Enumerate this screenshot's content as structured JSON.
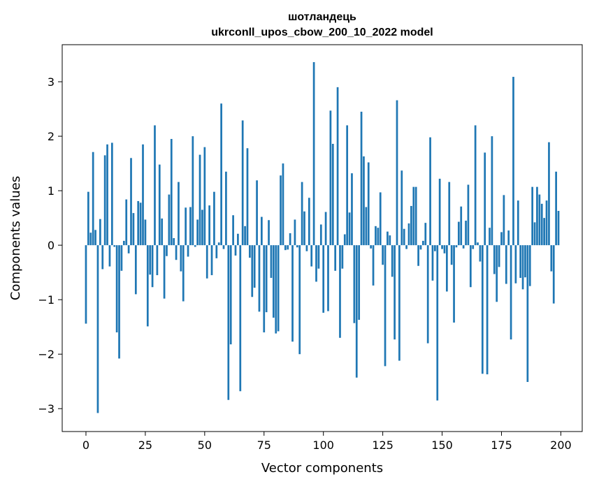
{
  "chart_data": {
    "type": "bar",
    "title_line1": "шотландець",
    "title_line2": "ukrconll_upos_cbow_200_10_2022 model",
    "xlabel": "Vector components",
    "ylabel": "Components values",
    "xlim": [
      -10,
      209
    ],
    "ylim": [
      -3.42,
      3.68
    ],
    "xticks": [
      0,
      25,
      50,
      75,
      100,
      125,
      150,
      175,
      200
    ],
    "yticks": [
      -3,
      -2,
      -1,
      0,
      1,
      2,
      3
    ],
    "ytick_labels": [
      "−3",
      "−2",
      "−1",
      "0",
      "1",
      "2",
      "3"
    ],
    "grid": false,
    "bar_color": "#1f77b4",
    "values": [
      -1.44,
      0.98,
      0.23,
      1.71,
      0.28,
      -3.08,
      0.48,
      -0.44,
      1.65,
      1.85,
      -0.39,
      1.88,
      -0.03,
      -1.6,
      -2.08,
      -0.47,
      0.08,
      0.84,
      -0.15,
      1.6,
      0.59,
      -0.9,
      0.81,
      0.78,
      1.85,
      0.47,
      -1.49,
      -0.54,
      -0.77,
      2.2,
      -0.55,
      1.48,
      0.49,
      -0.98,
      -0.2,
      0.93,
      1.95,
      0.13,
      -0.27,
      1.16,
      -0.48,
      -1.03,
      0.69,
      -0.21,
      0.7,
      2.0,
      -0.03,
      0.47,
      1.66,
      0.65,
      1.8,
      -0.61,
      0.73,
      -0.55,
      0.98,
      -0.24,
      0.05,
      2.6,
      -0.07,
      1.35,
      -2.84,
      -1.82,
      0.55,
      -0.19,
      0.21,
      -2.68,
      2.29,
      0.35,
      1.78,
      -0.23,
      -0.95,
      -0.78,
      1.19,
      -1.22,
      0.52,
      -1.6,
      -1.23,
      0.46,
      -0.6,
      -1.33,
      -1.62,
      -1.58,
      1.28,
      1.5,
      -0.09,
      -0.08,
      0.22,
      -1.77,
      0.47,
      -0.04,
      -2.0,
      1.16,
      0.62,
      -0.11,
      0.87,
      -0.39,
      3.36,
      -0.67,
      -0.43,
      0.38,
      -1.24,
      0.61,
      -1.21,
      2.47,
      1.86,
      -0.47,
      2.9,
      -1.7,
      -0.43,
      0.2,
      2.2,
      0.6,
      1.32,
      -1.43,
      -2.43,
      -1.37,
      2.45,
      1.63,
      0.7,
      1.52,
      -0.06,
      -0.74,
      0.35,
      0.32,
      0.97,
      -0.36,
      -2.22,
      0.25,
      0.18,
      -0.58,
      -1.73,
      2.66,
      -2.12,
      1.37,
      0.3,
      -0.07,
      0.4,
      0.72,
      1.07,
      1.07,
      -0.38,
      -0.08,
      0.08,
      0.41,
      -1.8,
      1.98,
      -0.65,
      -0.11,
      -2.85,
      1.22,
      -0.07,
      -0.15,
      -0.85,
      1.16,
      -0.36,
      -1.42,
      -0.04,
      0.43,
      0.71,
      -0.06,
      0.45,
      1.11,
      -0.77,
      -0.07,
      2.2,
      0.05,
      -0.3,
      -2.36,
      1.7,
      -2.37,
      0.32,
      2.0,
      -0.53,
      -1.04,
      -0.4,
      0.24,
      0.92,
      -0.71,
      0.27,
      -1.73,
      3.09,
      -0.7,
      0.82,
      -0.6,
      -0.81,
      -0.59,
      -2.51,
      -0.75,
      1.07,
      0.42,
      1.07,
      0.93,
      0.76,
      0.5,
      0.82,
      1.89,
      -0.48,
      -1.07,
      1.35,
      0.63
    ]
  }
}
